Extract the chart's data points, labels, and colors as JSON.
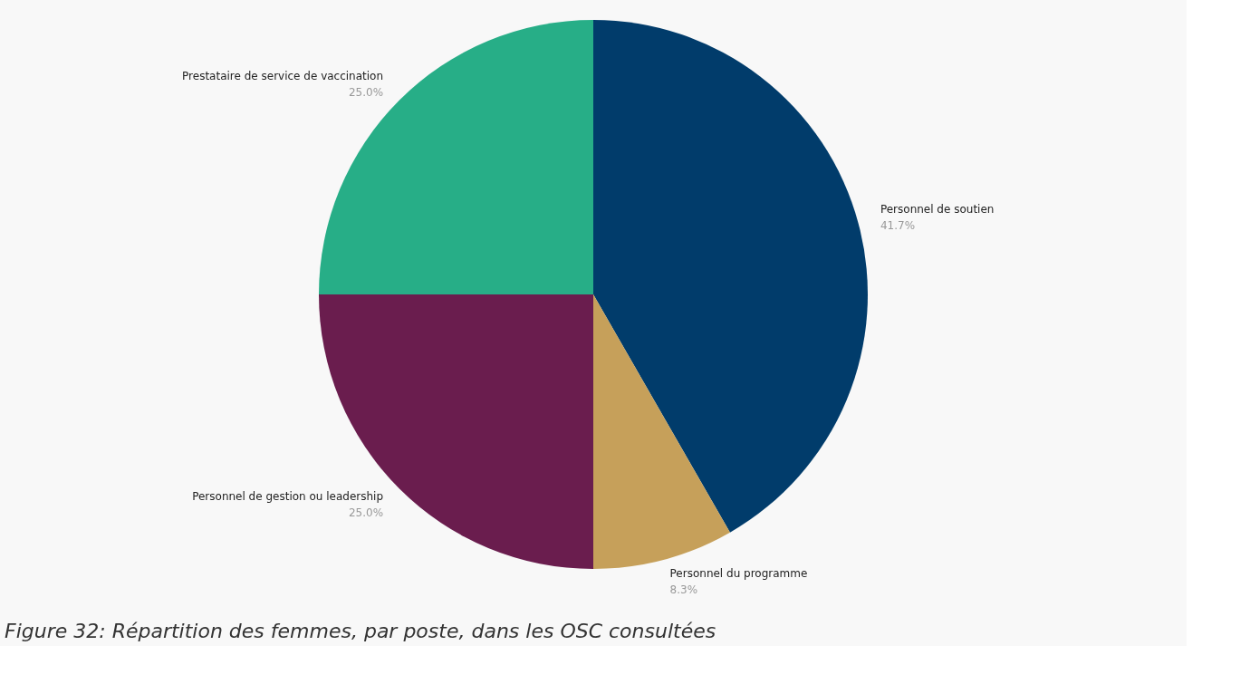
{
  "chart_data": {
    "type": "pie",
    "title": "Figure 32: Répartition des femmes, par poste, dans les OSC consultées",
    "categories": [
      "Personnel de soutien",
      "Personnel du programme",
      "Personnel de gestion ou leadership",
      "Prestataire de service de vaccination"
    ],
    "values": [
      41.7,
      8.3,
      25.0,
      25.0
    ],
    "value_labels": [
      "41.7%",
      "8.3%",
      "25.0%",
      "25.0%"
    ],
    "colors": [
      "#013c6b",
      "#c6a05a",
      "#6a1d4e",
      "#27ae87"
    ],
    "legend": false
  }
}
